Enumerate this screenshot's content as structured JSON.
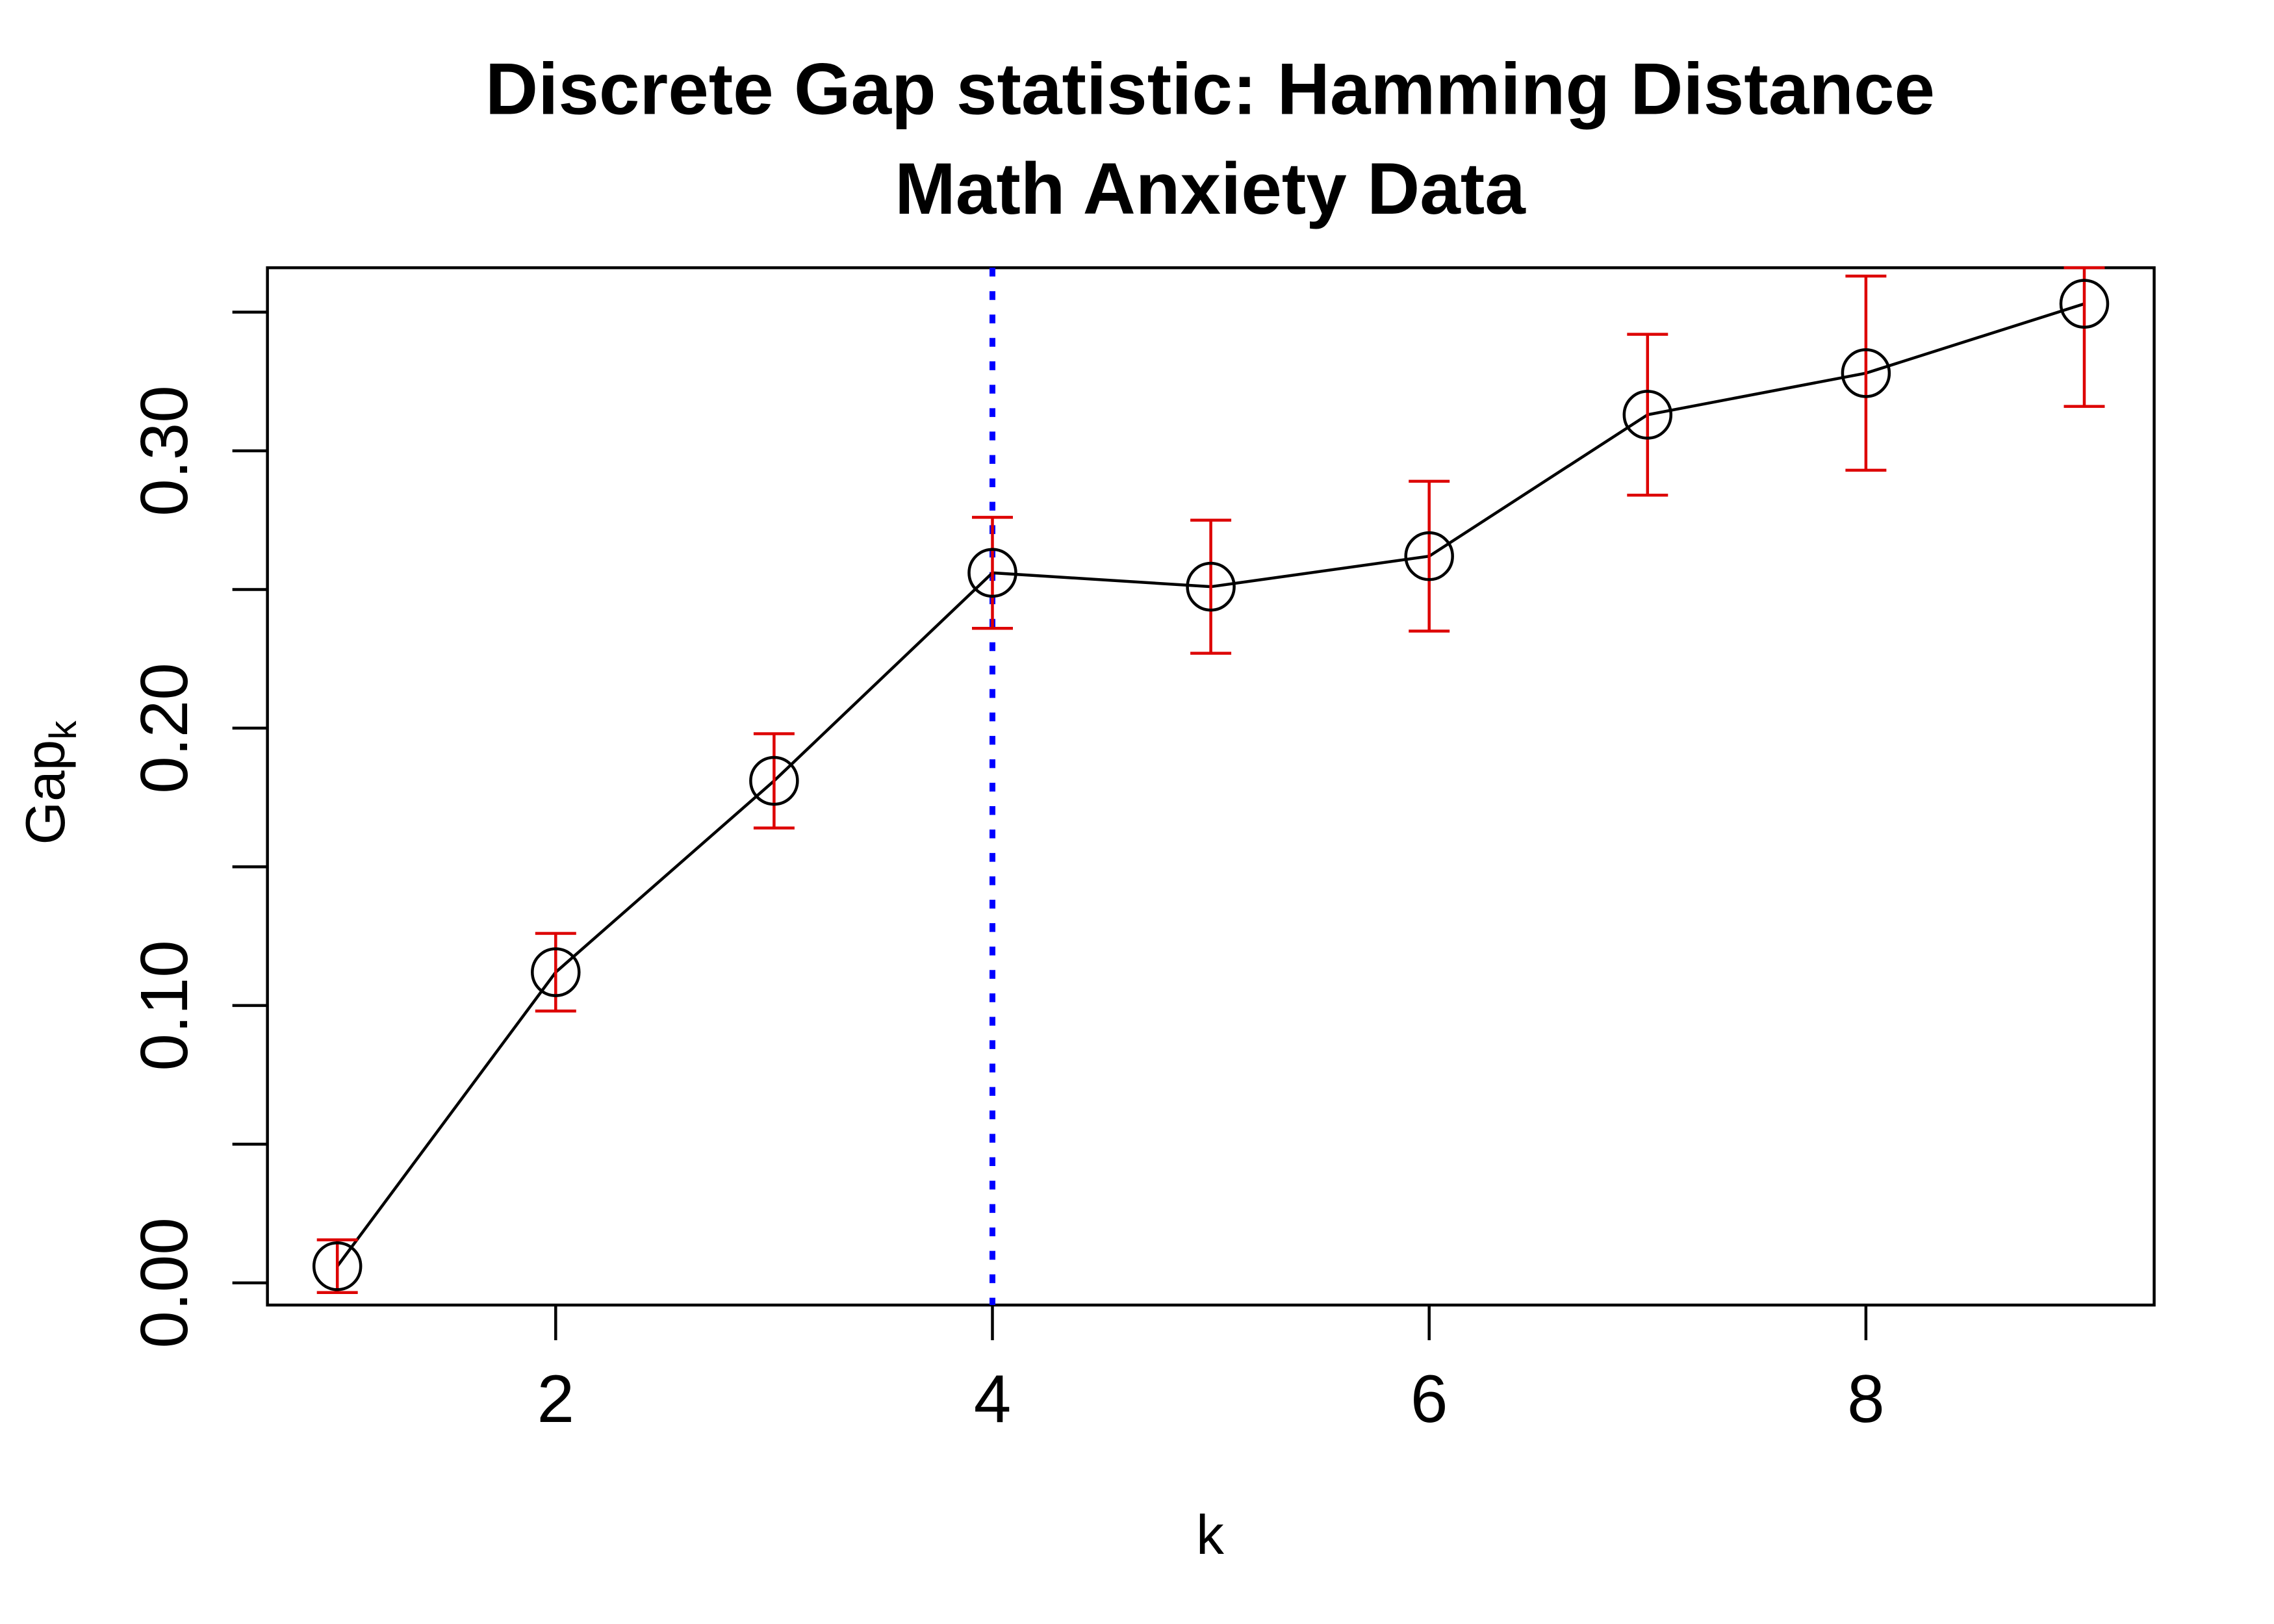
{
  "chart_data": {
    "type": "line",
    "title": "Discrete Gap statistic: Hamming Distance",
    "subtitle": "Math Anxiety Data",
    "xlabel": "k",
    "ylabel_main": "Gap",
    "ylabel_sub": "k",
    "x": [
      1,
      2,
      3,
      4,
      5,
      6,
      7,
      8,
      9
    ],
    "values": [
      0.006,
      0.112,
      0.181,
      0.256,
      0.251,
      0.262,
      0.313,
      0.328,
      0.353
    ],
    "error": [
      0.0095,
      0.014,
      0.017,
      0.02,
      0.024,
      0.027,
      0.029,
      0.035,
      0.037
    ],
    "xlim": [
      0.68,
      9.32
    ],
    "ylim": [
      -0.008,
      0.366
    ],
    "xticks": [
      2,
      4,
      6,
      8
    ],
    "xtick_labels": [
      "2",
      "4",
      "6",
      "8"
    ],
    "yticks": [
      0,
      0.05,
      0.1,
      0.15,
      0.2,
      0.25,
      0.3,
      0.35
    ],
    "ytick_labels": [
      "0.00",
      "0.10",
      "0.20",
      "0.30"
    ],
    "ytick_labeled_values": [
      0,
      0.1,
      0.2,
      0.3
    ],
    "vline_x": 4,
    "grid": false,
    "colors": {
      "line": "#000000",
      "error_bars": "#dd0000",
      "vline": "#0000ff"
    }
  }
}
